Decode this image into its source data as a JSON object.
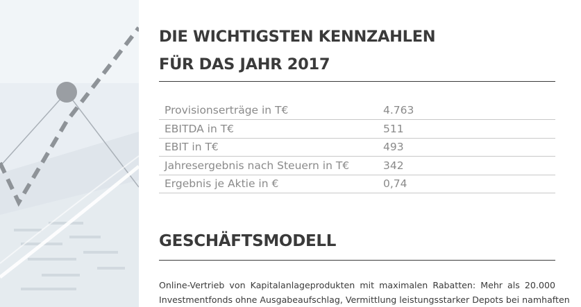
{
  "heading": {
    "line1": "DIE WICHTIGSTEN KENNZAHLEN",
    "line2": "FÜR DAS JAHR 2017"
  },
  "kpis": [
    {
      "label": "Provisionserträge in T€",
      "value": "4.763"
    },
    {
      "label": "EBITDA in T€",
      "value": "511"
    },
    {
      "label": "EBIT in T€",
      "value": "493"
    },
    {
      "label": "Jahresergebnis nach Steuern in T€",
      "value": "342"
    },
    {
      "label": "Ergebnis je Aktie in €",
      "value": "0,74"
    }
  ],
  "section": {
    "title": "GESCHÄFTSMODELL",
    "text_line1": "Online-Vertrieb von Kapitalanlageprodukten mit maximalen Rabatten: Mehr als 20.000",
    "text_line2": "Investmentfonds ohne Ausgabeaufschlag, Vermittlung leistungsstarker Depots bei namhaften"
  },
  "colors": {
    "heading": "#3a3a3a",
    "table_text": "#8a8a8a",
    "table_rule": "#c8c8c8",
    "decor_dash": "#8e9398"
  }
}
